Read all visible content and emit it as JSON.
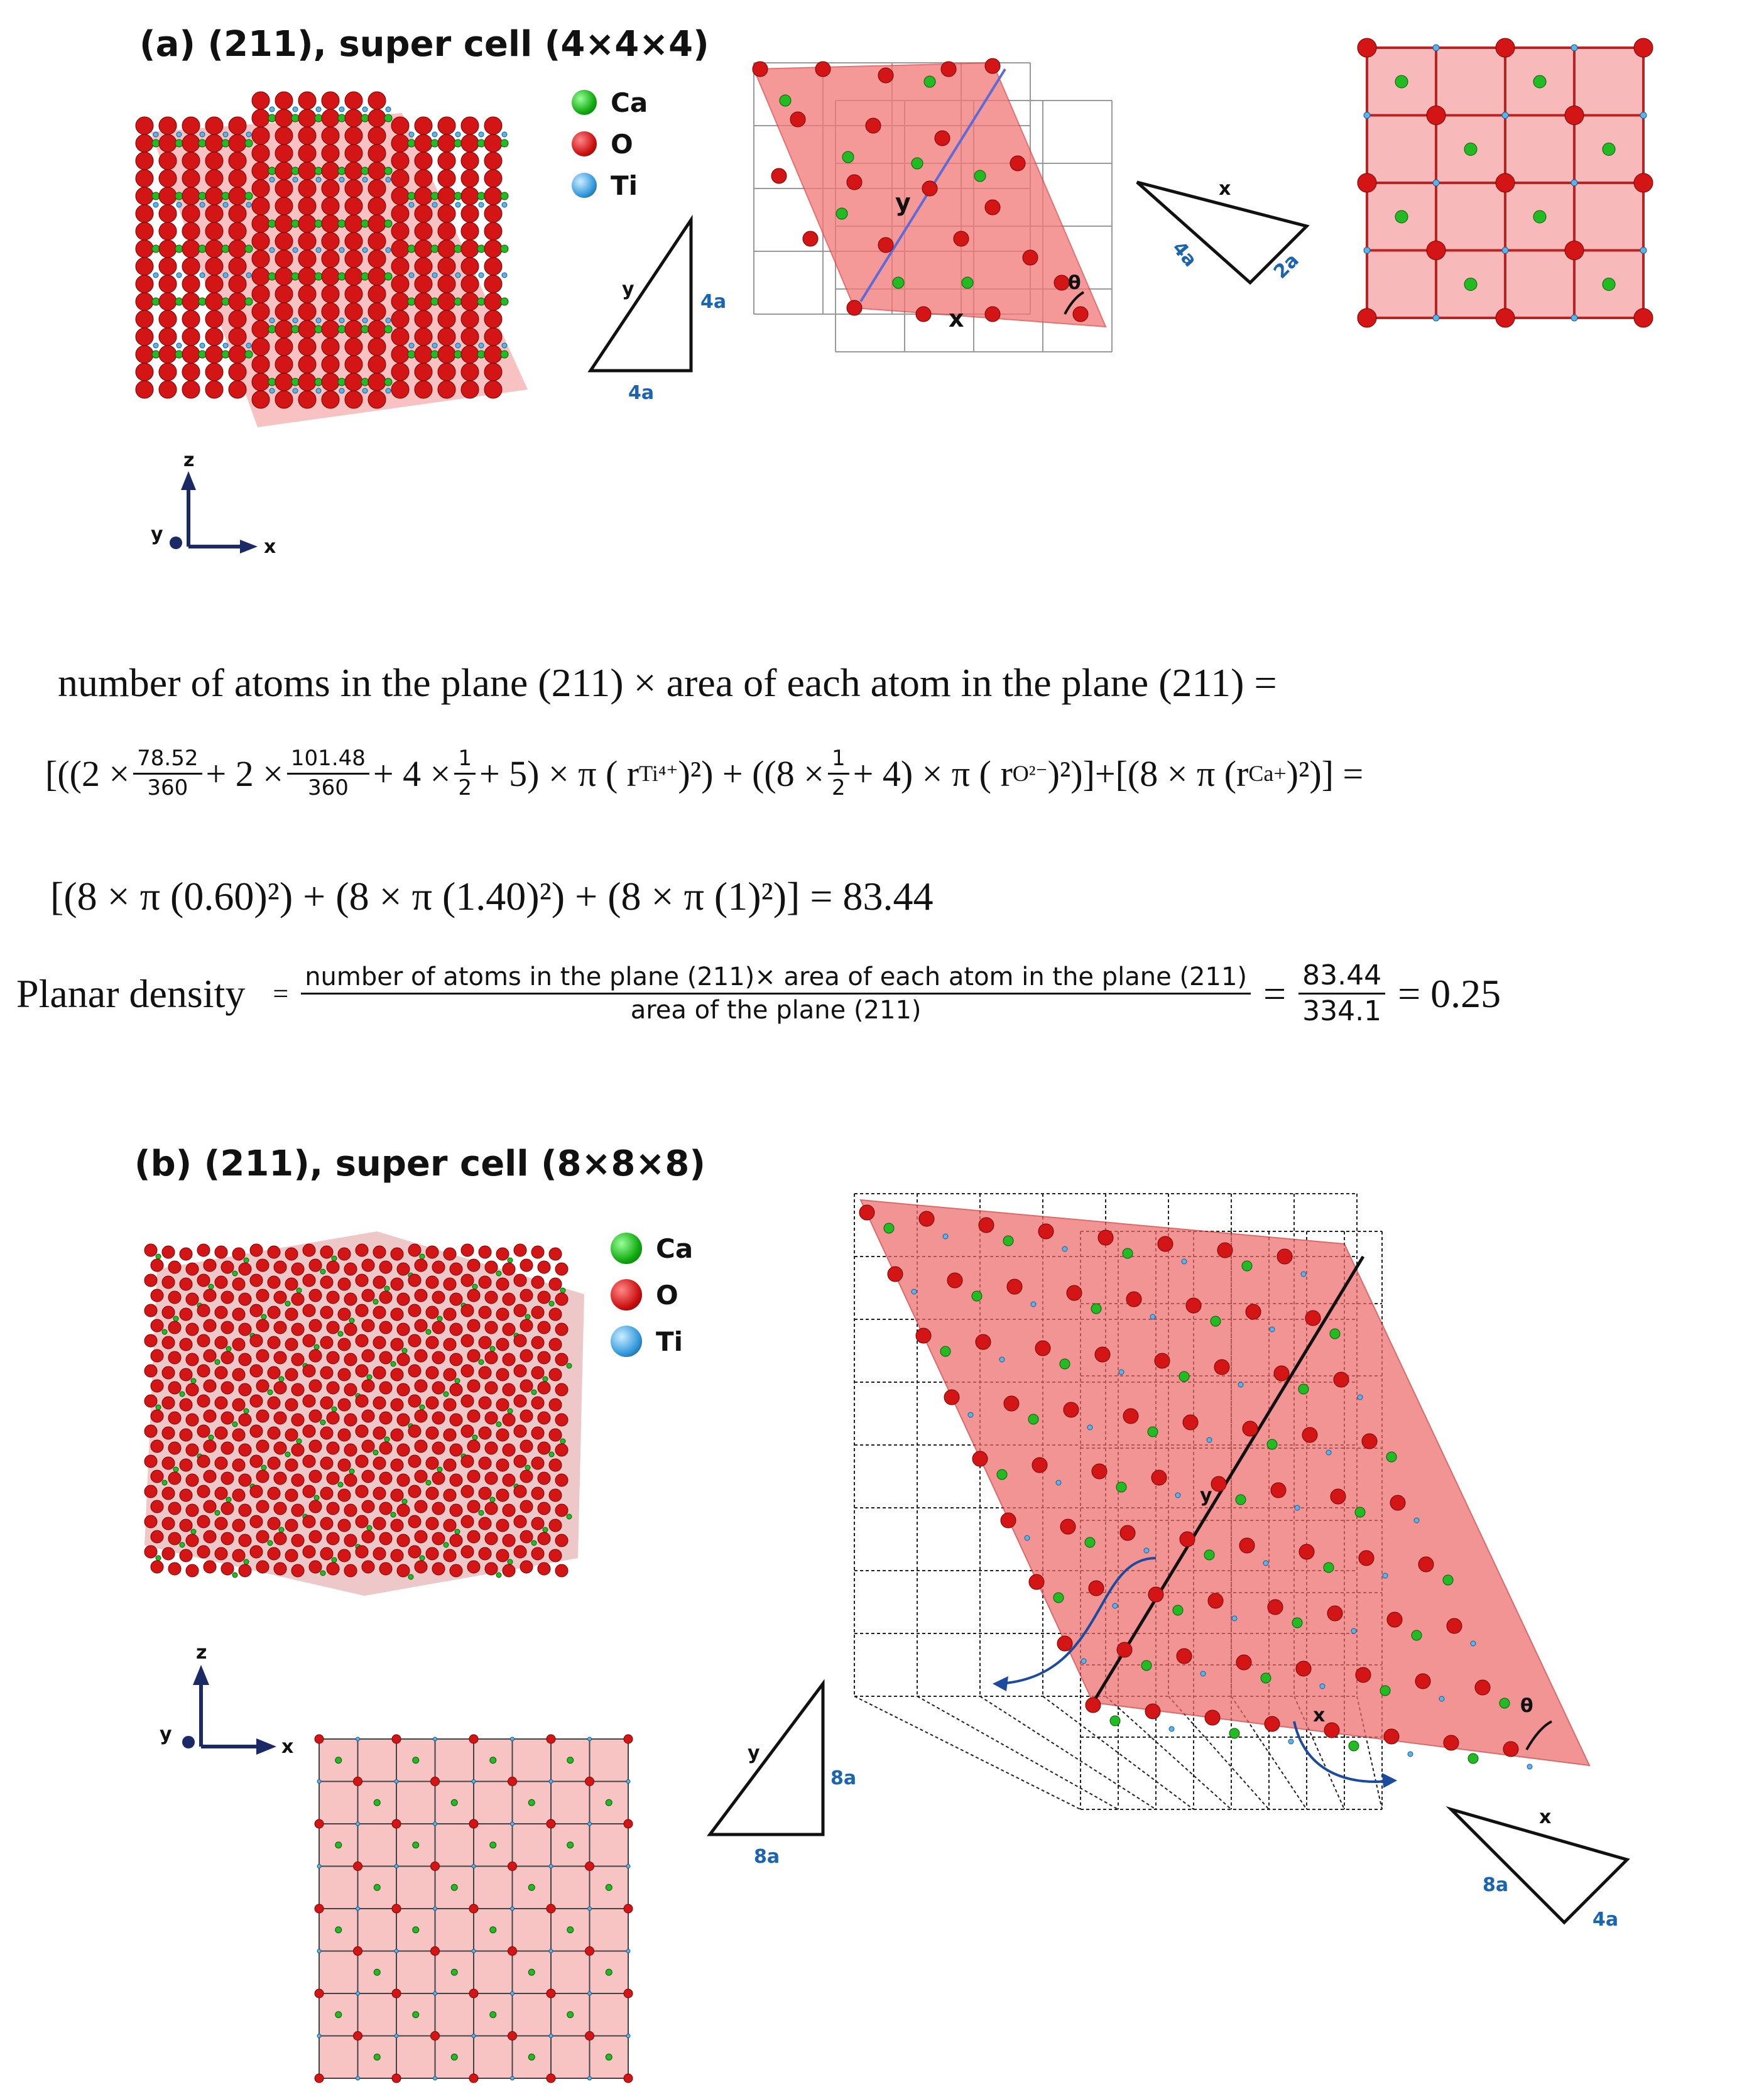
{
  "panel_a": {
    "heading": "(a) (211), super cell (4×4×4)",
    "legend": [
      {
        "label": "Ca",
        "color": "#22bb22"
      },
      {
        "label": "O",
        "color": "#cc1111"
      },
      {
        "label": "Ti",
        "color": "#4aa3e0"
      }
    ],
    "triangle_left": {
      "side_label": "y",
      "vertical_label": "4a",
      "base_label": "4a"
    },
    "grid_cube": {
      "y_label": "y",
      "x_label": "x",
      "angle_label": "θ"
    },
    "triangle_right": {
      "top_label": "x",
      "left_label": "4a",
      "right_label": "2a"
    },
    "axes": {
      "z": "z",
      "y": "y",
      "x": "x"
    }
  },
  "equations": {
    "line1": "number of atoms in the plane (211) × area of each atom in the plane (211) =",
    "line2": {
      "open": "[((2 ×",
      "f1_num": "78.52",
      "f1_den": "360",
      "mid1": "+ 2 ×",
      "f2_num": "101.48",
      "f2_den": "360",
      "mid2": "+ 4 ×",
      "f3_num": "1",
      "f3_den": "2",
      "mid3": "+ 5) × π ( r",
      "ti_sub": "Ti⁴⁺",
      "mid4": ")²) + ((8 ×",
      "f4_num": "1",
      "f4_den": "2",
      "mid5": "+ 4) × π ( r",
      "o_sub": "O²⁻",
      "mid6": ")²)]+[(8 × π (r",
      "ca_sub": "Ca+",
      "close": ")²)] ="
    },
    "line3": "[(8 × π (0.60)²) + (8 × π (1.40)²) + (8 × π (1)²)] = 83.44",
    "planar": {
      "label": "Planar density",
      "eq1": "=",
      "num": "number of atoms in the plane (211)× area of each atom in the plane (211)",
      "den": "area of the plane (211)",
      "eq2": "=",
      "f_num": "83.44",
      "f_den": "334.1",
      "result": "= 0.25"
    }
  },
  "panel_b": {
    "heading": "(b) (211), super cell (8×8×8)",
    "legend": [
      {
        "label": "Ca",
        "color": "#22bb22"
      },
      {
        "label": "O",
        "color": "#cc1111"
      },
      {
        "label": "Ti",
        "color": "#4aa3e0"
      }
    ],
    "axes": {
      "z": "z",
      "y": "y",
      "x": "x"
    },
    "grid_cube": {
      "y_label": "y",
      "x_label": "x",
      "angle_label": "θ"
    },
    "triangle_left": {
      "side_label": "y",
      "vertical_label": "8a",
      "base_label": "8a"
    },
    "triangle_right": {
      "top_label": "x",
      "left_label": "8a",
      "right_label": "4a"
    }
  }
}
